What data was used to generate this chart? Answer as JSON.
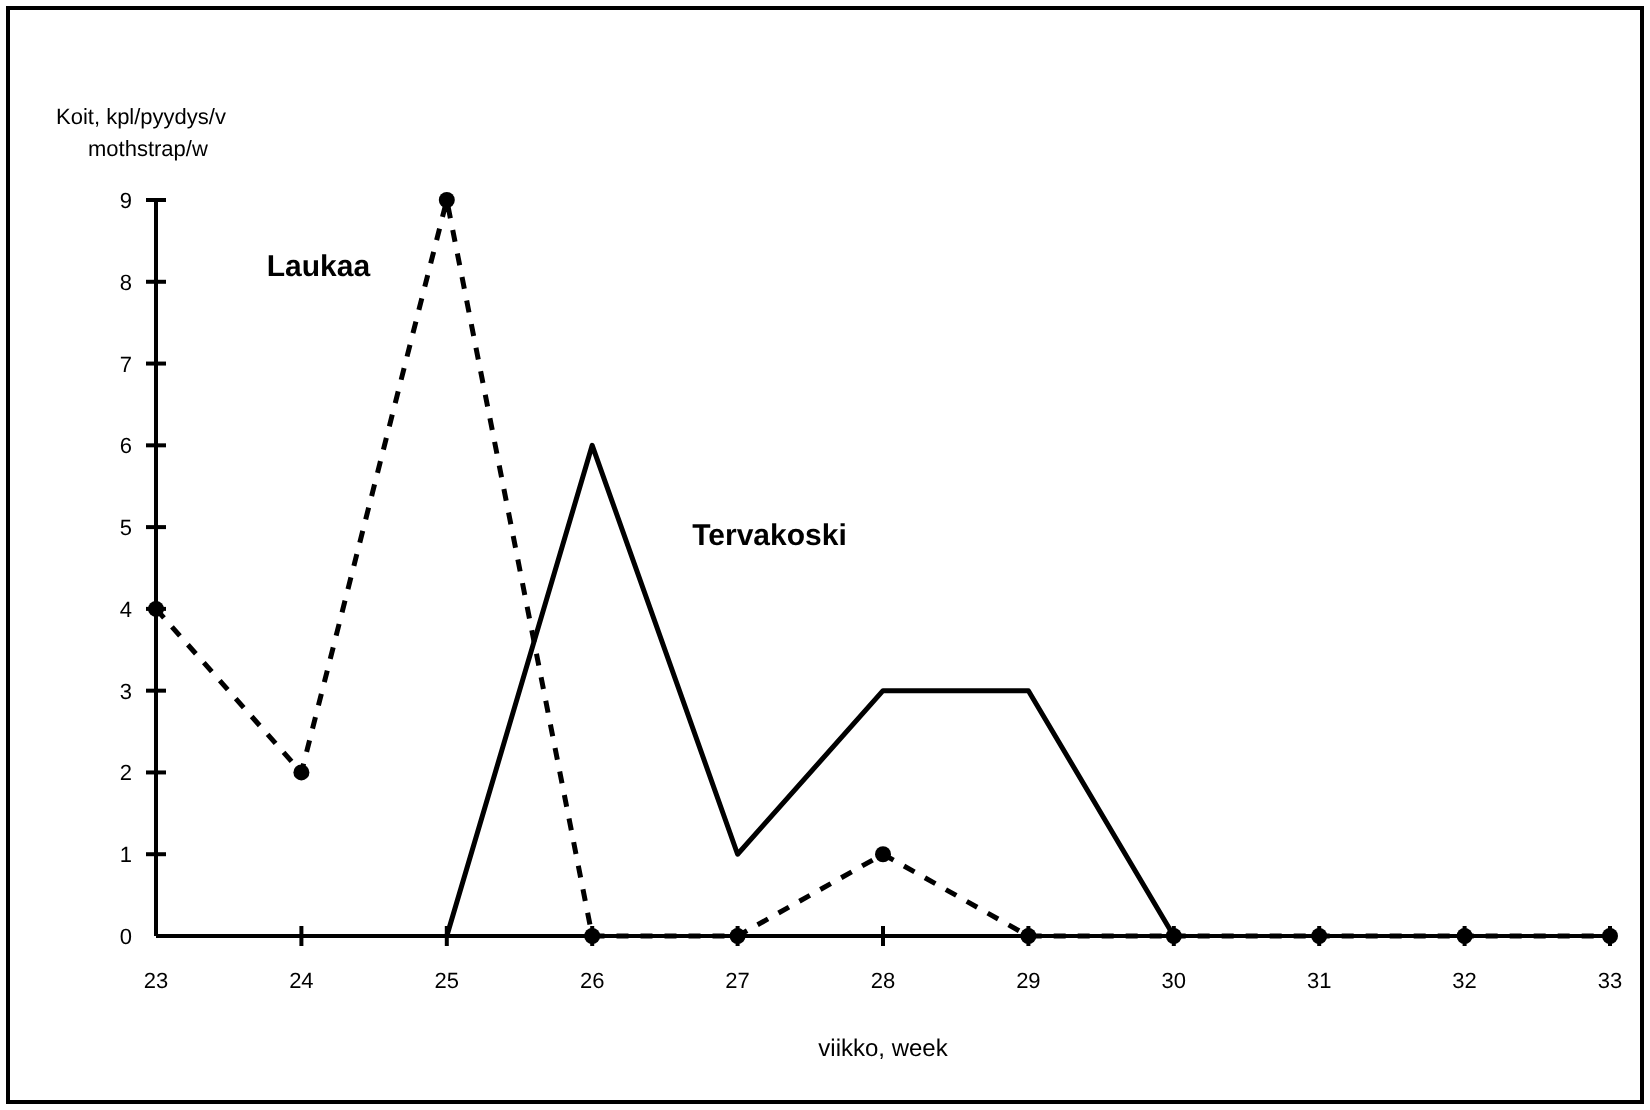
{
  "chart_data": {
    "type": "line",
    "xlabel": "viikko, week",
    "ylabel": "Koit, kpl/pyydys/v\nmothstrap/w",
    "xlim": [
      23,
      33
    ],
    "xticks": [
      23,
      24,
      25,
      26,
      27,
      28,
      29,
      30,
      31,
      32,
      33
    ],
    "ylim": [
      0,
      9
    ],
    "yticks": [
      0,
      1,
      2,
      3,
      4,
      5,
      6,
      7,
      8,
      9
    ],
    "grid": false,
    "series": [
      {
        "name": "Laukaa",
        "color": "#000000",
        "line_style": "dashed",
        "marker": "circle",
        "x": [
          23,
          24,
          25,
          26,
          27,
          28,
          29,
          30,
          31,
          32,
          33
        ],
        "values": [
          4,
          2,
          9,
          0,
          0,
          1,
          0,
          0,
          0,
          0,
          0
        ]
      },
      {
        "name": "Tervakoski",
        "color": "#000000",
        "line_style": "solid",
        "marker": "none",
        "x": [
          25,
          26,
          27,
          28,
          29,
          30
        ],
        "values": [
          0,
          6,
          1,
          3,
          3,
          0
        ]
      }
    ]
  }
}
